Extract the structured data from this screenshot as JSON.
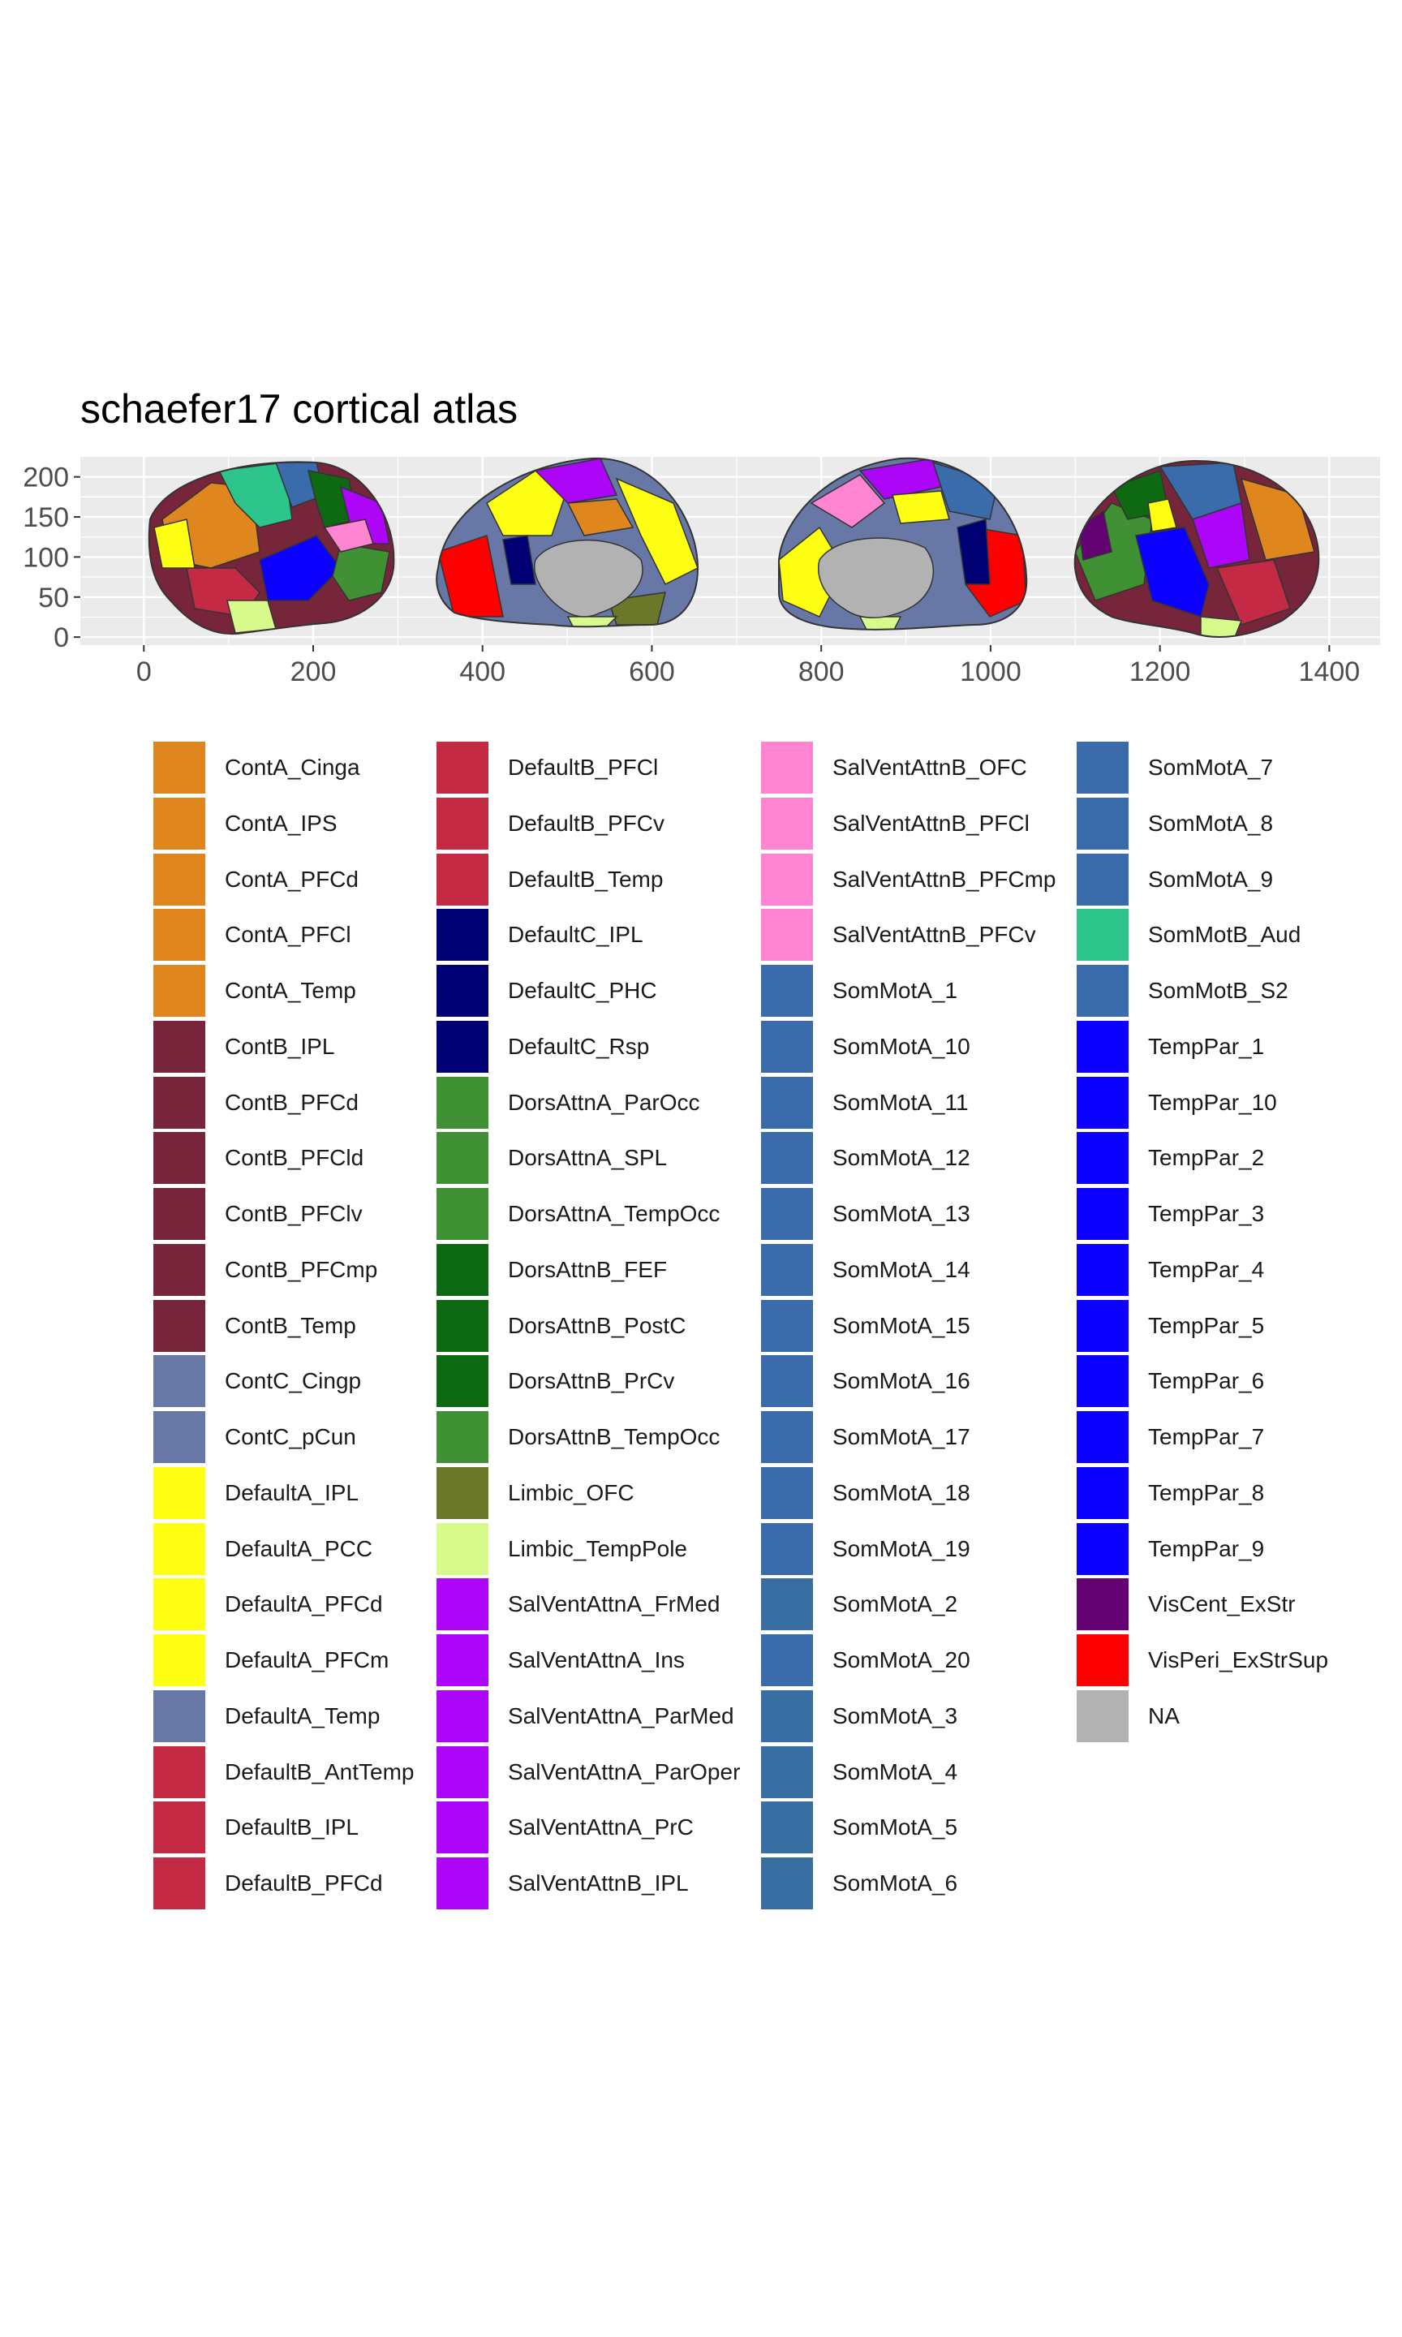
{
  "chart_data": {
    "type": "map",
    "title": "schaefer17 cortical atlas",
    "xlim": [
      -75,
      1460
    ],
    "ylim": [
      -10,
      225
    ],
    "x_ticks": [
      0,
      200,
      400,
      600,
      800,
      1000,
      1200,
      1400
    ],
    "y_ticks": [
      0,
      50,
      100,
      150,
      200
    ],
    "grid": true,
    "legend_position": "bottom",
    "legend": [
      {
        "label": "ContA_Cinga",
        "color": "#E0861F"
      },
      {
        "label": "ContA_IPS",
        "color": "#E0861F"
      },
      {
        "label": "ContA_PFCd",
        "color": "#E0861F"
      },
      {
        "label": "ContA_PFCl",
        "color": "#E0861F"
      },
      {
        "label": "ContA_Temp",
        "color": "#E0861F"
      },
      {
        "label": "ContB_IPL",
        "color": "#77253B"
      },
      {
        "label": "ContB_PFCd",
        "color": "#77253B"
      },
      {
        "label": "ContB_PFCld",
        "color": "#77253B"
      },
      {
        "label": "ContB_PFClv",
        "color": "#77253B"
      },
      {
        "label": "ContB_PFCmp",
        "color": "#77253B"
      },
      {
        "label": "ContB_Temp",
        "color": "#77253B"
      },
      {
        "label": "ContC_Cingp",
        "color": "#6878A6"
      },
      {
        "label": "ContC_pCun",
        "color": "#6878A6"
      },
      {
        "label": "DefaultA_IPL",
        "color": "#FFFF14"
      },
      {
        "label": "DefaultA_PCC",
        "color": "#FFFF14"
      },
      {
        "label": "DefaultA_PFCd",
        "color": "#FFFF14"
      },
      {
        "label": "DefaultA_PFCm",
        "color": "#FFFF14"
      },
      {
        "label": "DefaultA_Temp",
        "color": "#6878A6"
      },
      {
        "label": "DefaultB_AntTemp",
        "color": "#C42A43"
      },
      {
        "label": "DefaultB_IPL",
        "color": "#C42A43"
      },
      {
        "label": "DefaultB_PFCd",
        "color": "#C42A43"
      },
      {
        "label": "DefaultB_PFCl",
        "color": "#C42A43"
      },
      {
        "label": "DefaultB_PFCv",
        "color": "#C42A43"
      },
      {
        "label": "DefaultB_Temp",
        "color": "#C42A43"
      },
      {
        "label": "DefaultC_IPL",
        "color": "#000074"
      },
      {
        "label": "DefaultC_PHC",
        "color": "#000074"
      },
      {
        "label": "DefaultC_Rsp",
        "color": "#000074"
      },
      {
        "label": "DorsAttnA_ParOcc",
        "color": "#3F9133"
      },
      {
        "label": "DorsAttnA_SPL",
        "color": "#3F9133"
      },
      {
        "label": "DorsAttnA_TempOcc",
        "color": "#3F9133"
      },
      {
        "label": "DorsAttnB_FEF",
        "color": "#0D6A12"
      },
      {
        "label": "DorsAttnB_PostC",
        "color": "#0D6A12"
      },
      {
        "label": "DorsAttnB_PrCv",
        "color": "#0D6A12"
      },
      {
        "label": "DorsAttnB_TempOcc",
        "color": "#3F9133"
      },
      {
        "label": "Limbic_OFC",
        "color": "#6B7729"
      },
      {
        "label": "Limbic_TempPole",
        "color": "#D8F98B"
      },
      {
        "label": "SalVentAttnA_FrMed",
        "color": "#AD05F7"
      },
      {
        "label": "SalVentAttnA_Ins",
        "color": "#AD05F7"
      },
      {
        "label": "SalVentAttnA_ParMed",
        "color": "#AD05F7"
      },
      {
        "label": "SalVentAttnA_ParOper",
        "color": "#AD05F7"
      },
      {
        "label": "SalVentAttnA_PrC",
        "color": "#AD05F7"
      },
      {
        "label": "SalVentAttnB_IPL",
        "color": "#AD05F7"
      },
      {
        "label": "SalVentAttnB_OFC",
        "color": "#FF84D2"
      },
      {
        "label": "SalVentAttnB_PFCl",
        "color": "#FF84D2"
      },
      {
        "label": "SalVentAttnB_PFCmp",
        "color": "#FF84D2"
      },
      {
        "label": "SalVentAttnB_PFCv",
        "color": "#FF84D2"
      },
      {
        "label": "SomMotA_1",
        "color": "#3A6BAA"
      },
      {
        "label": "SomMotA_10",
        "color": "#3A6BAA"
      },
      {
        "label": "SomMotA_11",
        "color": "#3A6BAA"
      },
      {
        "label": "SomMotA_12",
        "color": "#3A6BAA"
      },
      {
        "label": "SomMotA_13",
        "color": "#3A6BAA"
      },
      {
        "label": "SomMotA_14",
        "color": "#3A6BAA"
      },
      {
        "label": "SomMotA_15",
        "color": "#3A6BAA"
      },
      {
        "label": "SomMotA_16",
        "color": "#3A6BAA"
      },
      {
        "label": "SomMotA_17",
        "color": "#3A6BAA"
      },
      {
        "label": "SomMotA_18",
        "color": "#3A6BAA"
      },
      {
        "label": "SomMotA_19",
        "color": "#3A6BAA"
      },
      {
        "label": "SomMotA_2",
        "color": "#386EA2"
      },
      {
        "label": "SomMotA_20",
        "color": "#3A6BAA"
      },
      {
        "label": "SomMotA_3",
        "color": "#386EA2"
      },
      {
        "label": "SomMotA_4",
        "color": "#386EA2"
      },
      {
        "label": "SomMotA_5",
        "color": "#386EA2"
      },
      {
        "label": "SomMotA_6",
        "color": "#386EA2"
      },
      {
        "label": "SomMotA_7",
        "color": "#3A6BAA"
      },
      {
        "label": "SomMotA_8",
        "color": "#3A6BAA"
      },
      {
        "label": "SomMotA_9",
        "color": "#3A6BAA"
      },
      {
        "label": "SomMotB_Aud",
        "color": "#2DC58C"
      },
      {
        "label": "SomMotB_S2",
        "color": "#3A6BAA"
      },
      {
        "label": "TempPar_1",
        "color": "#0C00FF"
      },
      {
        "label": "TempPar_10",
        "color": "#0C00FF"
      },
      {
        "label": "TempPar_2",
        "color": "#0C00FF"
      },
      {
        "label": "TempPar_3",
        "color": "#0C00FF"
      },
      {
        "label": "TempPar_4",
        "color": "#0C00FF"
      },
      {
        "label": "TempPar_5",
        "color": "#0C00FF"
      },
      {
        "label": "TempPar_6",
        "color": "#0C00FF"
      },
      {
        "label": "TempPar_7",
        "color": "#0C00FF"
      },
      {
        "label": "TempPar_8",
        "color": "#0C00FF"
      },
      {
        "label": "TempPar_9",
        "color": "#0C00FF"
      },
      {
        "label": "VisCent_ExStr",
        "color": "#640274"
      },
      {
        "label": "VisPeri_ExStrSup",
        "color": "#FF0000"
      },
      {
        "label": "NA",
        "color": "#B2B2B2"
      }
    ]
  },
  "colors": {
    "panel_background": "#EBEBEB",
    "grid": "#FFFFFF",
    "region_outline": "#333333",
    "medial_wall": "#B2B2B2"
  }
}
